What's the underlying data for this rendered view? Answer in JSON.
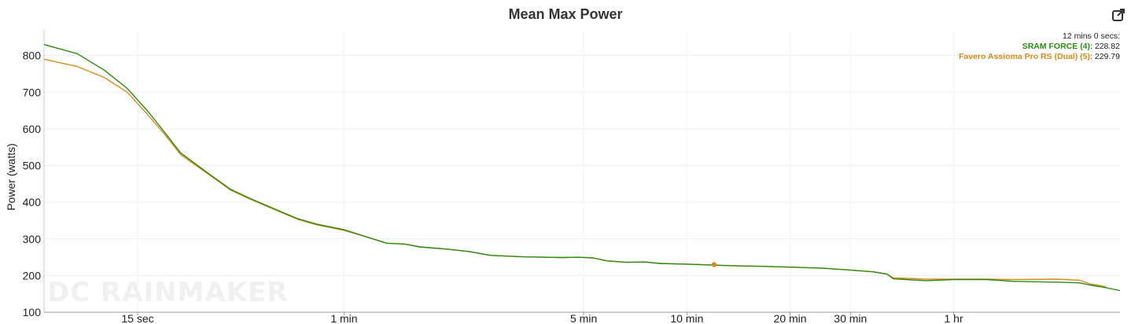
{
  "chart_data": {
    "type": "line",
    "title": "Mean Max Power",
    "ylabel": "Power (watts)",
    "xlabel": "",
    "x_scale": "log",
    "x_unit": "seconds",
    "xlim": [
      8,
      11000
    ],
    "ylim": [
      100,
      870
    ],
    "y_ticks": [
      100,
      200,
      300,
      400,
      500,
      600,
      700,
      800
    ],
    "x_ticks": [
      {
        "value": 15,
        "label": "15 sec"
      },
      {
        "value": 60,
        "label": "1 min"
      },
      {
        "value": 300,
        "label": "5 min"
      },
      {
        "value": 600,
        "label": "10 min"
      },
      {
        "value": 1200,
        "label": "20 min"
      },
      {
        "value": 1800,
        "label": "30 min"
      },
      {
        "value": 3600,
        "label": "1 hr"
      }
    ],
    "grid": true,
    "series": [
      {
        "name": "SRAM FORCE (4)",
        "color": "#2a8c12",
        "points": [
          [
            8,
            830
          ],
          [
            10,
            805
          ],
          [
            12,
            760
          ],
          [
            14,
            710
          ],
          [
            16,
            650
          ],
          [
            18,
            590
          ],
          [
            20,
            535
          ],
          [
            24,
            480
          ],
          [
            28,
            435
          ],
          [
            32,
            410
          ],
          [
            38,
            380
          ],
          [
            44,
            355
          ],
          [
            50,
            340
          ],
          [
            60,
            325
          ],
          [
            70,
            305
          ],
          [
            80,
            288
          ],
          [
            90,
            286
          ],
          [
            100,
            278
          ],
          [
            120,
            272
          ],
          [
            140,
            265
          ],
          [
            160,
            255
          ],
          [
            180,
            253
          ],
          [
            200,
            251
          ],
          [
            230,
            250
          ],
          [
            260,
            249
          ],
          [
            290,
            250
          ],
          [
            320,
            248
          ],
          [
            350,
            240
          ],
          [
            400,
            236
          ],
          [
            450,
            237
          ],
          [
            500,
            233
          ],
          [
            600,
            231
          ],
          [
            700,
            229
          ],
          [
            800,
            227
          ],
          [
            900,
            226
          ],
          [
            1000,
            225
          ],
          [
            1200,
            223
          ],
          [
            1500,
            220
          ],
          [
            1800,
            215
          ],
          [
            2100,
            210
          ],
          [
            2300,
            204
          ],
          [
            2400,
            191
          ],
          [
            3000,
            186
          ],
          [
            3600,
            189
          ],
          [
            4500,
            189
          ],
          [
            5400,
            184
          ],
          [
            7200,
            182
          ],
          [
            8400,
            180
          ],
          [
            9000,
            174
          ],
          [
            10000,
            167
          ],
          [
            11000,
            159
          ]
        ]
      },
      {
        "name": "Favero Assioma Pro RS (Dual) (5)",
        "color": "#d98b1a",
        "points": [
          [
            8,
            790
          ],
          [
            10,
            770
          ],
          [
            12,
            740
          ],
          [
            14,
            700
          ],
          [
            16,
            640
          ],
          [
            18,
            585
          ],
          [
            20,
            530
          ],
          [
            24,
            478
          ],
          [
            28,
            433
          ],
          [
            32,
            408
          ],
          [
            38,
            378
          ],
          [
            44,
            353
          ],
          [
            50,
            338
          ],
          [
            60,
            323
          ],
          [
            70,
            305
          ],
          [
            80,
            288
          ],
          [
            90,
            286
          ],
          [
            100,
            278
          ],
          [
            120,
            272
          ],
          [
            140,
            265
          ],
          [
            160,
            255
          ],
          [
            180,
            253
          ],
          [
            200,
            251
          ],
          [
            230,
            250
          ],
          [
            260,
            249
          ],
          [
            290,
            250
          ],
          [
            320,
            248
          ],
          [
            350,
            240
          ],
          [
            400,
            236
          ],
          [
            450,
            237
          ],
          [
            500,
            233
          ],
          [
            600,
            231
          ],
          [
            700,
            229
          ],
          [
            800,
            227
          ],
          [
            900,
            226
          ],
          [
            1000,
            225
          ],
          [
            1200,
            223
          ],
          [
            1500,
            220
          ],
          [
            1800,
            215
          ],
          [
            2100,
            210
          ],
          [
            2300,
            204
          ],
          [
            2400,
            194
          ],
          [
            3000,
            190
          ],
          [
            3600,
            190
          ],
          [
            4500,
            190
          ],
          [
            5400,
            189
          ],
          [
            7200,
            190
          ],
          [
            8400,
            187
          ],
          [
            9000,
            177
          ],
          [
            10000,
            170
          ]
        ]
      }
    ],
    "marker": {
      "x": 720,
      "y": 229.79,
      "color": "#d98b1a"
    },
    "tooltip": {
      "header": "12 mins 0 secs:",
      "rows": [
        {
          "name": "SRAM FORCE (4)",
          "value": "228.82",
          "color": "#2a8c12"
        },
        {
          "name": "Favero Assioma Pro RS (Dual) (5)",
          "value": "229.79",
          "color": "#d98b1a"
        }
      ]
    }
  },
  "ui": {
    "watermark": "DC RAINMAKER",
    "export_icon": "external-link-icon"
  }
}
